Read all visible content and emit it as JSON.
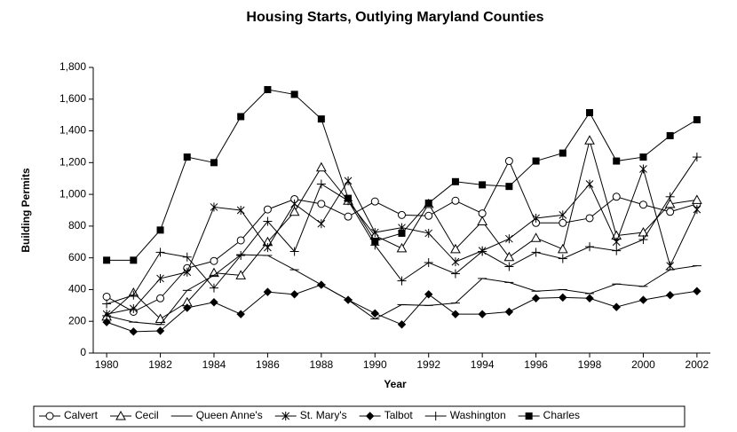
{
  "chart_data": {
    "type": "line",
    "title": "Housing Starts, Outlying Maryland Counties",
    "xlabel": "Year",
    "ylabel": "Building Permits",
    "x": [
      1980,
      1981,
      1982,
      1983,
      1984,
      1985,
      1986,
      1987,
      1988,
      1989,
      1990,
      1991,
      1992,
      1993,
      1994,
      1995,
      1996,
      1997,
      1998,
      1999,
      2000,
      2001,
      2002
    ],
    "xlim": [
      1979.5,
      2002.5
    ],
    "xticks": [
      1980,
      1982,
      1984,
      1986,
      1988,
      1990,
      1992,
      1994,
      1996,
      1998,
      2000,
      2002
    ],
    "ylim": [
      0,
      1800
    ],
    "yticks": [
      0,
      200,
      400,
      600,
      800,
      {
        "value": 1000,
        "label": "1,000"
      },
      {
        "value": 1200,
        "label": "1,200"
      },
      {
        "value": 1400,
        "label": "1,400"
      },
      {
        "value": 1600,
        "label": "1,600"
      },
      {
        "value": 1800,
        "label": "1,800"
      }
    ],
    "legend": "bottom",
    "series": [
      {
        "name": "Calvert",
        "color": "#000000",
        "marker": "circle",
        "values": [
          355,
          260,
          345,
          535,
          580,
          710,
          905,
          970,
          940,
          860,
          955,
          870,
          865,
          960,
          880,
          1210,
          820,
          820,
          850,
          985,
          935,
          890,
          940
        ]
      },
      {
        "name": "Cecil",
        "color": "#000000",
        "marker": "triangle",
        "values": [
          230,
          380,
          215,
          320,
          505,
          490,
          700,
          890,
          1170,
          960,
          740,
          660,
          940,
          655,
          830,
          605,
          725,
          655,
          1340,
          740,
          760,
          940,
          965
        ]
      },
      {
        "name": "Queen Anne's",
        "color": "#000000",
        "marker": "dash",
        "values": [
          235,
          195,
          180,
          395,
          490,
          620,
          615,
          525,
          430,
          335,
          215,
          305,
          300,
          315,
          470,
          445,
          390,
          400,
          375,
          435,
          420,
          525,
          550
        ]
      },
      {
        "name": "St. Mary's",
        "color": "#000000",
        "marker": "asterisk",
        "values": [
          245,
          280,
          470,
          510,
          920,
          900,
          665,
          940,
          815,
          1085,
          760,
          790,
          755,
          575,
          645,
          720,
          850,
          870,
          1065,
          700,
          1160,
          550,
          905
        ]
      },
      {
        "name": "Talbot",
        "color": "#000000",
        "marker": "diamond",
        "values": [
          195,
          135,
          140,
          285,
          320,
          245,
          385,
          370,
          430,
          335,
          250,
          180,
          370,
          245,
          245,
          260,
          345,
          350,
          345,
          290,
          335,
          365,
          390
        ]
      },
      {
        "name": "Washington",
        "color": "#000000",
        "marker": "plus",
        "values": [
          310,
          365,
          635,
          605,
          410,
          615,
          830,
          640,
          1065,
          960,
          680,
          455,
          570,
          500,
          640,
          545,
          635,
          595,
          670,
          645,
          715,
          985,
          1235
        ]
      },
      {
        "name": "Charles",
        "color": "#000000",
        "marker": "square",
        "values": [
          585,
          585,
          775,
          1235,
          1200,
          1490,
          1660,
          1630,
          1475,
          975,
          705,
          755,
          945,
          1080,
          1060,
          1050,
          1210,
          1260,
          1515,
          1210,
          1235,
          1370,
          1470
        ]
      }
    ]
  }
}
